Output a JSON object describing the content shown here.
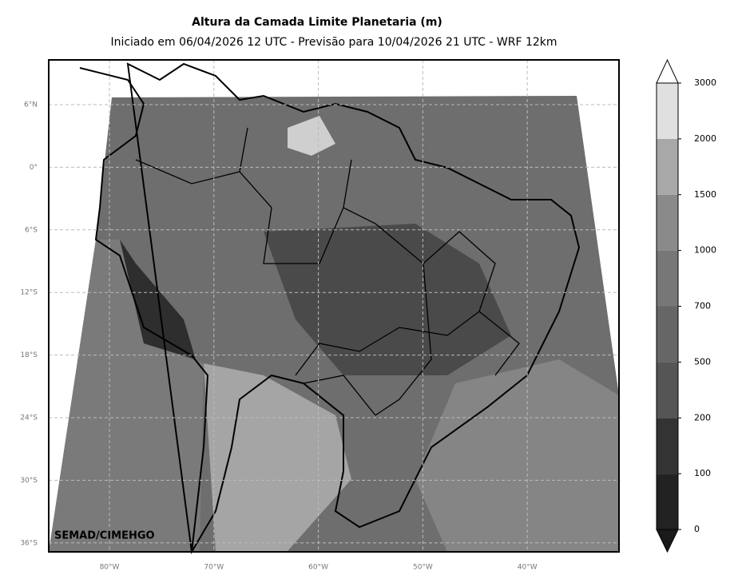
{
  "title": "Altura da Camada Limite Planetaria (m)",
  "subtitle": "Iniciado em 06/04/2026 12 UTC - Previsão para 10/04/2026 21 UTC - WRF 12km",
  "credit": "SEMAD/CIMEHGO",
  "lat_labels": [
    "6°N",
    "0°",
    "6°S",
    "12°S",
    "18°S",
    "24°S",
    "30°S",
    "36°S"
  ],
  "lon_labels": [
    "80°W",
    "70°W",
    "60°W",
    "50°W",
    "40°W"
  ],
  "colorbar": {
    "levels": [
      0,
      100,
      200,
      500,
      700,
      1000,
      1500,
      2000,
      3000
    ],
    "colors": [
      "#222222",
      "#333333",
      "#555555",
      "#666666",
      "#777777",
      "#8a8a8a",
      "#a8a8a8",
      "#e0e0e0"
    ],
    "under_color": "#1a1a1a",
    "over_color": "#ffffff"
  }
}
